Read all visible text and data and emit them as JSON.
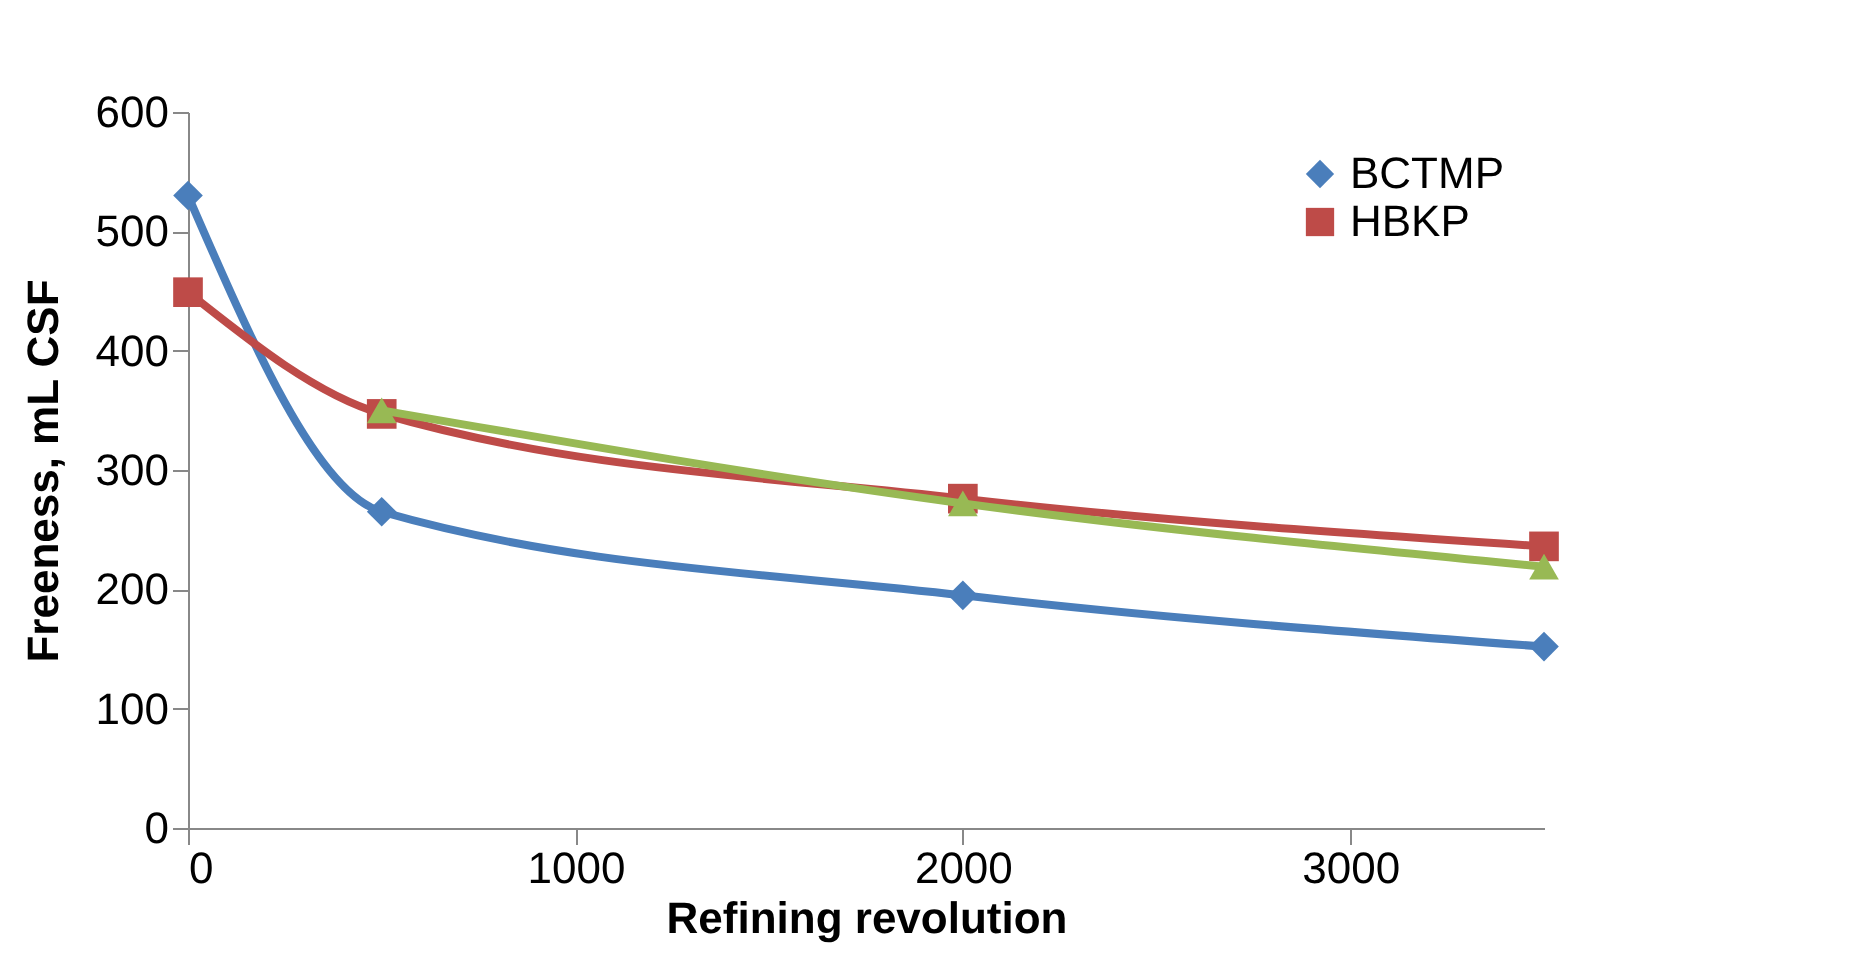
{
  "chart_data": {
    "type": "line",
    "xlabel": "Refining revolution",
    "ylabel": "Freeness, mL CSF",
    "x": [
      0,
      500,
      2000,
      3500
    ],
    "series": [
      {
        "name": "BCTMP",
        "color": "#4a7ebb",
        "marker": "diamond",
        "values": [
          530,
          265,
          195,
          152
        ]
      },
      {
        "name": "HBKP",
        "color": "#be4b48",
        "marker": "square",
        "values": [
          449,
          347,
          276,
          236
        ]
      },
      {
        "color": "#98b954",
        "marker": "triangle",
        "x": [
          500,
          2000,
          3500
        ],
        "values": [
          350,
          272,
          219
        ]
      }
    ],
    "xlim": [
      0,
      3500
    ],
    "xticks": [
      0,
      1000,
      2000,
      3000
    ],
    "ylim": [
      0,
      600
    ],
    "yticks": [
      0,
      100,
      200,
      300,
      400,
      500,
      600
    ],
    "grid": false,
    "legend": "top right"
  }
}
